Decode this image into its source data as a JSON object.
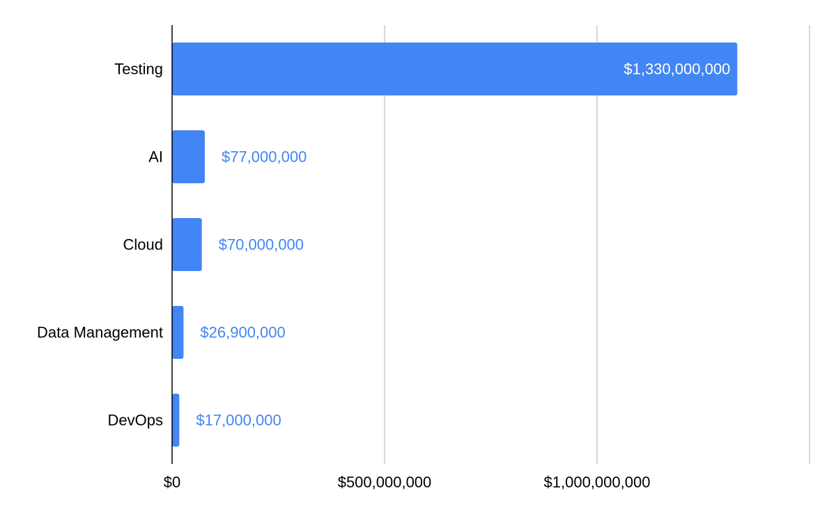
{
  "chart_data": {
    "type": "bar",
    "orientation": "horizontal",
    "title": "",
    "xlabel": "",
    "ylabel": "",
    "categories": [
      "Testing",
      "AI",
      "Cloud",
      "Data Management",
      "DevOps"
    ],
    "values": [
      1330000000,
      77000000,
      70000000,
      26900000,
      17000000
    ],
    "data_labels": [
      "$1,330,000,000",
      "$77,000,000",
      "$70,000,000",
      "$26,900,000",
      "$17,000,000"
    ],
    "xlim": [
      0,
      1500000000
    ],
    "xticks": [
      0,
      500000000,
      1000000000,
      1500000000
    ],
    "xtick_labels": [
      "$0",
      "$500,000,000",
      "$1,000,000,000",
      ""
    ],
    "grid": true,
    "legend": "none",
    "colors": {
      "bar": "#4285f4",
      "label_outside": "#4285f4",
      "label_inside": "#ffffff",
      "grid": "#cccccc",
      "axis": "#000000"
    }
  }
}
